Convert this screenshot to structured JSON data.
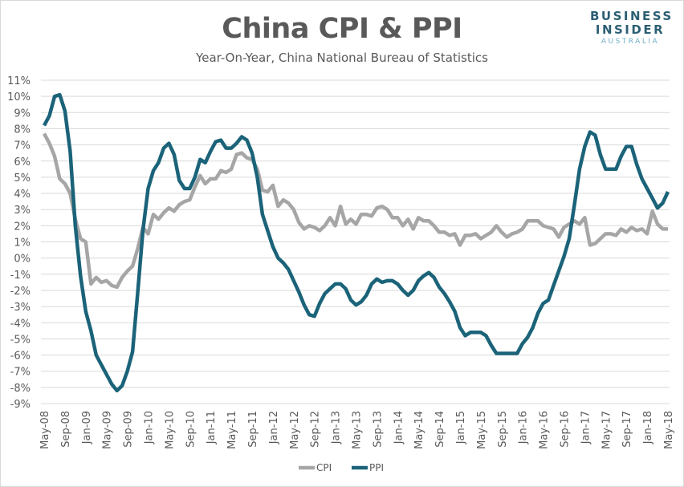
{
  "logo": {
    "line1": "BUSINESS",
    "line2": "INSIDER",
    "line3": "AUSTRALIA"
  },
  "chart_data": {
    "type": "line",
    "title": "China CPI & PPI",
    "subtitle": "Year-On-Year, China National Bureau of Statistics",
    "xlabel": "",
    "ylabel": "",
    "ylim": [
      -9,
      11
    ],
    "y_ticks": [
      "11%",
      "10%",
      "9%",
      "8%",
      "7%",
      "6%",
      "5%",
      "4%",
      "3%",
      "2%",
      "1%",
      "0%",
      "-1%",
      "-2%",
      "-3%",
      "-4%",
      "-5%",
      "-6%",
      "-7%",
      "-8%",
      "-9%"
    ],
    "x_start": "May-08",
    "x_end": "May-18",
    "x_ticks": [
      "May-08",
      "Sep-08",
      "Jan-09",
      "May-09",
      "Sep-09",
      "Jan-10",
      "May-10",
      "Sep-10",
      "Jan-11",
      "May-11",
      "Sep-11",
      "Jan-12",
      "May-12",
      "Sep-12",
      "Jan-13",
      "May-13",
      "Sep-13",
      "Jan-14",
      "May-14",
      "Sep-14",
      "Jan-15",
      "May-15",
      "Sep-15",
      "Jan-16",
      "May-16",
      "Sep-16",
      "Jan-17",
      "May-17",
      "Sep-17",
      "Jan-18",
      "May-18"
    ],
    "grid": true,
    "legend_position": "bottom",
    "colors": {
      "CPI": "#a6a6a6",
      "PPI": "#1b6379"
    },
    "series": [
      {
        "name": "CPI",
        "values": [
          7.7,
          7.1,
          6.3,
          4.9,
          4.6,
          4.0,
          2.4,
          1.2,
          1.0,
          -1.6,
          -1.2,
          -1.5,
          -1.4,
          -1.7,
          -1.8,
          -1.2,
          -0.8,
          -0.5,
          0.6,
          1.9,
          1.5,
          2.7,
          2.4,
          2.8,
          3.1,
          2.9,
          3.3,
          3.5,
          3.6,
          4.4,
          5.1,
          4.6,
          4.9,
          4.9,
          5.4,
          5.3,
          5.5,
          6.4,
          6.5,
          6.2,
          6.1,
          5.5,
          4.2,
          4.1,
          4.5,
          3.2,
          3.6,
          3.4,
          3.0,
          2.2,
          1.8,
          2.0,
          1.9,
          1.7,
          2.0,
          2.5,
          2.0,
          3.2,
          2.1,
          2.4,
          2.1,
          2.7,
          2.7,
          2.6,
          3.1,
          3.2,
          3.0,
          2.5,
          2.5,
          2.0,
          2.4,
          1.8,
          2.5,
          2.3,
          2.3,
          2.0,
          1.6,
          1.6,
          1.4,
          1.5,
          0.8,
          1.4,
          1.4,
          1.5,
          1.2,
          1.4,
          1.6,
          2.0,
          1.6,
          1.3,
          1.5,
          1.6,
          1.8,
          2.3,
          2.3,
          2.3,
          2.0,
          1.9,
          1.8,
          1.3,
          1.9,
          2.1,
          2.3,
          2.1,
          2.5,
          0.8,
          0.9,
          1.2,
          1.5,
          1.5,
          1.4,
          1.8,
          1.6,
          1.9,
          1.7,
          1.8,
          1.5,
          2.9,
          2.1,
          1.8,
          1.8
        ]
      },
      {
        "name": "PPI",
        "values": [
          8.2,
          8.8,
          10.0,
          10.1,
          9.1,
          6.6,
          2.0,
          -1.1,
          -3.3,
          -4.5,
          -6.0,
          -6.6,
          -7.2,
          -7.8,
          -8.2,
          -7.9,
          -7.0,
          -5.8,
          -2.1,
          1.7,
          4.3,
          5.4,
          5.9,
          6.8,
          7.1,
          6.4,
          4.8,
          4.3,
          4.3,
          5.0,
          6.1,
          5.9,
          6.6,
          7.2,
          7.3,
          6.8,
          6.8,
          7.1,
          7.5,
          7.3,
          6.5,
          5.0,
          2.7,
          1.7,
          0.7,
          0.0,
          -0.3,
          -0.7,
          -1.4,
          -2.1,
          -2.9,
          -3.5,
          -3.6,
          -2.8,
          -2.2,
          -1.9,
          -1.6,
          -1.6,
          -1.9,
          -2.6,
          -2.9,
          -2.7,
          -2.3,
          -1.6,
          -1.3,
          -1.5,
          -1.4,
          -1.4,
          -1.6,
          -2.0,
          -2.3,
          -2.0,
          -1.4,
          -1.1,
          -0.9,
          -1.2,
          -1.8,
          -2.2,
          -2.7,
          -3.3,
          -4.3,
          -4.8,
          -4.6,
          -4.6,
          -4.6,
          -4.8,
          -5.4,
          -5.9,
          -5.9,
          -5.9,
          -5.9,
          -5.9,
          -5.3,
          -4.9,
          -4.3,
          -3.4,
          -2.8,
          -2.6,
          -1.7,
          -0.8,
          0.1,
          1.2,
          3.3,
          5.5,
          6.9,
          7.8,
          7.6,
          6.4,
          5.5,
          5.5,
          5.5,
          6.3,
          6.9,
          6.9,
          5.8,
          4.9,
          4.3,
          3.7,
          3.1,
          3.4,
          4.1
        ]
      }
    ]
  }
}
